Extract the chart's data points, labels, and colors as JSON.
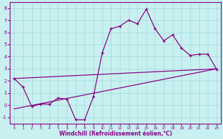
{
  "xlabel": "Windchill (Refroidissement éolien,°C)",
  "xlim": [
    -0.5,
    23.5
  ],
  "ylim": [
    -1.5,
    8.5
  ],
  "xticks": [
    0,
    1,
    2,
    3,
    4,
    5,
    6,
    7,
    8,
    9,
    10,
    11,
    12,
    13,
    14,
    15,
    16,
    17,
    18,
    19,
    20,
    21,
    22,
    23
  ],
  "yticks": [
    -1,
    0,
    1,
    2,
    3,
    4,
    5,
    6,
    7,
    8
  ],
  "bg_color": "#c8f0f0",
  "line_color": "#880088",
  "grid_color": "#a0d8d8",
  "line1_x": [
    0,
    1,
    2,
    3,
    4,
    5,
    6,
    7,
    8,
    9,
    10,
    11,
    12,
    13,
    14,
    15,
    16,
    17,
    18,
    19,
    20,
    21,
    22,
    23
  ],
  "line1_y": [
    2.2,
    1.5,
    -0.1,
    0.1,
    0.1,
    0.6,
    0.5,
    -1.2,
    -1.2,
    0.7,
    4.3,
    6.3,
    6.5,
    7.0,
    6.7,
    7.9,
    6.3,
    5.3,
    5.8,
    4.7,
    4.1,
    4.2,
    4.2,
    2.95
  ],
  "line2_x": [
    0,
    23
  ],
  "line2_y": [
    2.2,
    3.0
  ],
  "line3_x": [
    0,
    23
  ],
  "line3_y": [
    -0.3,
    3.0
  ]
}
